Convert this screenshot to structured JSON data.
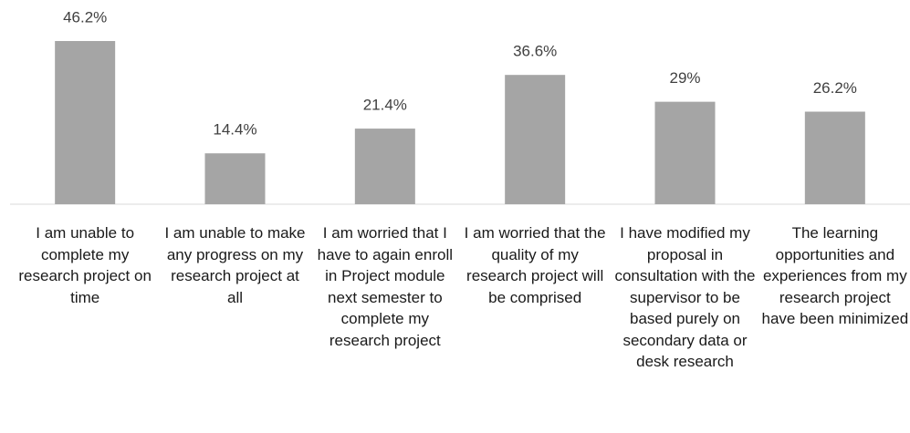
{
  "chart_data": {
    "type": "bar",
    "categories": [
      "I am unable to complete my research project on time",
      "I am unable to make any progress on my research project at all",
      "I am worried that I have to again enroll in Project module next semester to complete my research project",
      "I am worried that the quality of my research project will be comprised",
      "I have modified my proposal in consultation with the supervisor to be based purely on secondary data or desk research",
      "The learning opportunities and experiences from my research project have been minimized"
    ],
    "values": [
      46.2,
      14.4,
      21.4,
      36.6,
      29,
      26.2
    ],
    "value_labels": [
      "46.2%",
      "14.4%",
      "21.4%",
      "36.6%",
      "29%",
      "26.2%"
    ],
    "color": "#a5a5a5"
  }
}
